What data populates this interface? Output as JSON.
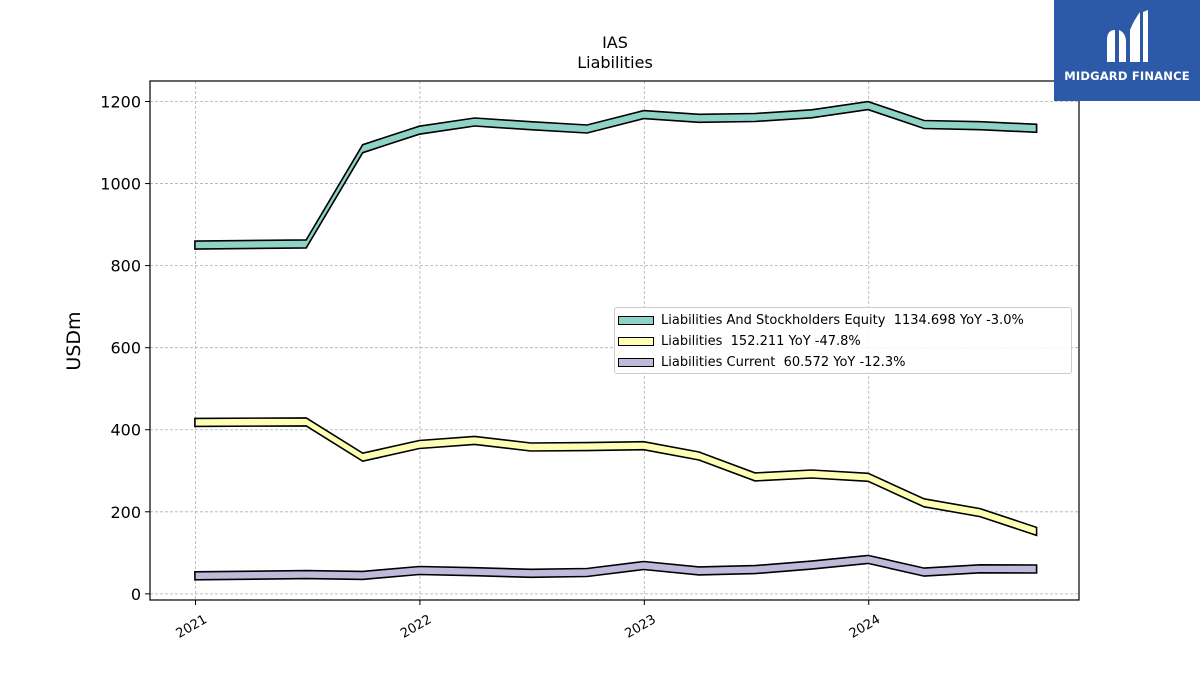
{
  "chart_data": {
    "type": "area",
    "title": "IAS",
    "subtitle": "Liabilities",
    "ylabel": "USDm",
    "xlabel": "",
    "ylim": [
      -15,
      1250
    ],
    "xlim": [
      "2020-10-19",
      "2024-12-08"
    ],
    "yticks": [
      0,
      200,
      400,
      600,
      800,
      1000,
      1200
    ],
    "xticks": [
      "2021",
      "2022",
      "2023",
      "2024"
    ],
    "grid": true,
    "legend_position": "center-right",
    "x": [
      "2020-12-31",
      "2021-06-30",
      "2021-09-30",
      "2021-12-31",
      "2022-03-31",
      "2022-06-30",
      "2022-09-30",
      "2022-12-31",
      "2023-03-31",
      "2023-06-30",
      "2023-09-30",
      "2023-12-31",
      "2024-03-31",
      "2024-06-30",
      "2024-09-30"
    ],
    "series": [
      {
        "name": "Liabilities And Stockholders Equity",
        "legend_label": "Liabilities And Stockholders Equity  1134.698 YoY -3.0%",
        "color": "#8dd3c7",
        "values": [
          850,
          853,
          1085,
          1130,
          1150,
          1141,
          1133,
          1168,
          1159,
          1161,
          1170,
          1190,
          1144,
          1141,
          1134.698
        ]
      },
      {
        "name": "Liabilities",
        "legend_label": "Liabilities  152.211 YoY -47.8%",
        "color": "#ffffb3",
        "values": [
          418,
          419,
          333,
          364,
          374,
          358,
          359,
          361,
          336,
          285,
          292,
          284,
          222,
          198,
          152.211
        ]
      },
      {
        "name": "Liabilities Current",
        "legend_label": "Liabilities Current  60.572 YoY -12.3%",
        "color": "#bebada",
        "values": [
          44,
          47,
          45,
          57,
          54,
          50,
          52,
          69,
          56,
          59,
          70,
          84,
          53,
          61,
          60.572
        ]
      }
    ]
  },
  "logo": {
    "text": "MIDGARD FINANCE",
    "background": "#2d5aa8"
  }
}
